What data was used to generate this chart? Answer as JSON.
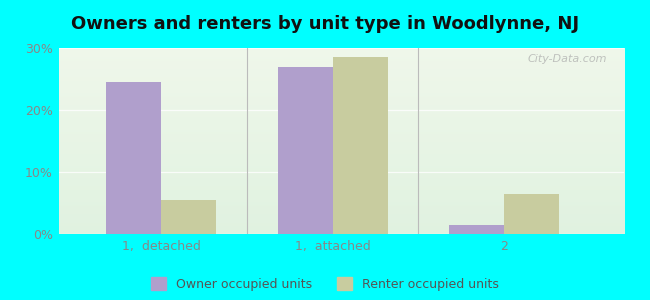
{
  "title": "Owners and renters by unit type in Woodlynne, NJ",
  "categories": [
    "1,  detached",
    "1,  attached",
    "2"
  ],
  "owner_values": [
    24.5,
    27.0,
    1.5
  ],
  "renter_values": [
    5.5,
    28.5,
    6.5
  ],
  "owner_color": "#b09fcc",
  "renter_color": "#c8cc9f",
  "ylim": [
    0,
    30
  ],
  "yticks": [
    0,
    10,
    20,
    30
  ],
  "ytick_labels": [
    "0%",
    "10%",
    "20%",
    "30%"
  ],
  "legend_owner": "Owner occupied units",
  "legend_renter": "Renter occupied units",
  "bg_color": "#00ffff",
  "bar_width": 0.32,
  "title_fontsize": 13,
  "watermark": "City-Data.com",
  "grid_color": "#dddddd",
  "tick_label_color": "#888888",
  "title_color": "#111111"
}
